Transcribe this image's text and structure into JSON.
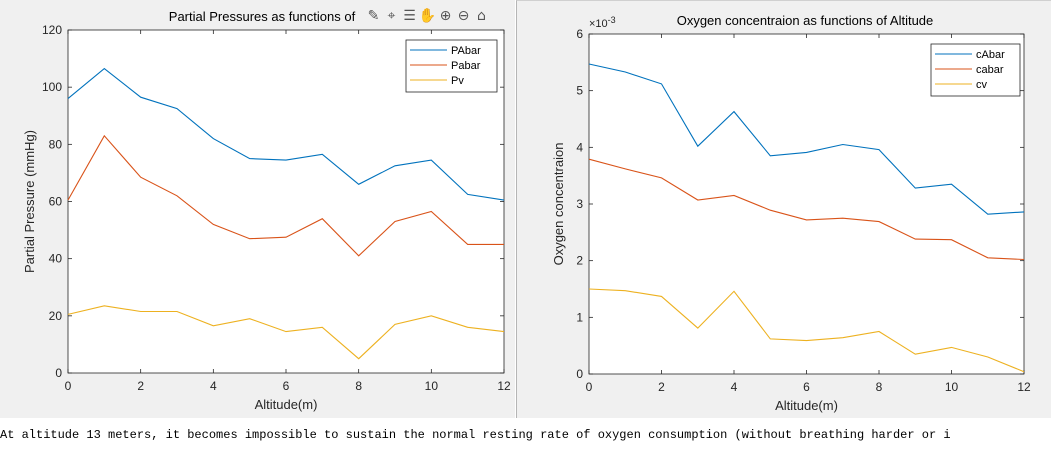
{
  "charts": [
    {
      "type": "line",
      "title": "Partial Pressures as functions of Altitude",
      "title_visible": "Partial Pressures as functions of",
      "xlabel": "Altitude(m)",
      "ylabel": "Partial Pressure (mmHg)",
      "xlim": [
        0,
        12
      ],
      "ylim": [
        0,
        120
      ],
      "xticks": [
        "0",
        "2",
        "4",
        "6",
        "8",
        "10",
        "12"
      ],
      "yticks": [
        "0",
        "20",
        "40",
        "60",
        "80",
        "100",
        "120"
      ],
      "legend_position": "top-right",
      "series": [
        {
          "name": "PAbar",
          "color": "#0072bd",
          "x": [
            0,
            1,
            2,
            3,
            4,
            5,
            6,
            7,
            8,
            9,
            10,
            11,
            12
          ],
          "values": [
            96,
            106.5,
            96.5,
            92.5,
            82,
            75,
            74.5,
            76.5,
            66,
            72.5,
            74.5,
            62.5,
            60.5
          ]
        },
        {
          "name": "Pabar",
          "color": "#d95319",
          "x": [
            0,
            1,
            2,
            3,
            4,
            5,
            6,
            7,
            8,
            9,
            10,
            11,
            12
          ],
          "values": [
            60.5,
            83,
            68.5,
            62,
            52,
            47,
            47.5,
            54,
            41,
            53,
            56.5,
            45,
            45
          ]
        },
        {
          "name": "Pv",
          "color": "#edb120",
          "x": [
            0,
            1,
            2,
            3,
            4,
            5,
            6,
            7,
            8,
            9,
            10,
            11,
            12
          ],
          "values": [
            20.5,
            23.5,
            21.5,
            21.5,
            16.5,
            19,
            14.5,
            16,
            5,
            17,
            20,
            16,
            14.5
          ]
        }
      ]
    },
    {
      "type": "line",
      "title": "Oxygen concentraion as functions of Altitude",
      "xlabel": "Altitude(m)",
      "ylabel": "Oxygen concentraion",
      "exponent": "×10",
      "exponent_power": "-3",
      "xlim": [
        0,
        12
      ],
      "ylim": [
        0,
        6
      ],
      "xticks": [
        "0",
        "2",
        "4",
        "6",
        "8",
        "10",
        "12"
      ],
      "yticks": [
        "0",
        "1",
        "2",
        "3",
        "4",
        "5",
        "6"
      ],
      "legend_position": "top-right",
      "series": [
        {
          "name": "cAbar",
          "color": "#0072bd",
          "x": [
            0,
            1,
            2,
            3,
            4,
            5,
            6,
            7,
            8,
            9,
            10,
            11,
            12
          ],
          "values": [
            5.47,
            5.33,
            5.12,
            4.02,
            4.63,
            3.85,
            3.91,
            4.05,
            3.96,
            3.28,
            3.35,
            2.82,
            2.86
          ]
        },
        {
          "name": "cabar",
          "color": "#d95319",
          "x": [
            0,
            1,
            2,
            3,
            4,
            5,
            6,
            7,
            8,
            9,
            10,
            11,
            12
          ],
          "values": [
            3.79,
            3.62,
            3.46,
            3.07,
            3.15,
            2.89,
            2.72,
            2.75,
            2.69,
            2.38,
            2.37,
            2.05,
            2.02
          ]
        },
        {
          "name": "cv",
          "color": "#edb120",
          "x": [
            0,
            1,
            2,
            3,
            4,
            5,
            6,
            7,
            8,
            9,
            10,
            11,
            12
          ],
          "values": [
            1.5,
            1.47,
            1.37,
            0.81,
            1.46,
            0.62,
            0.59,
            0.64,
            0.75,
            0.35,
            0.47,
            0.3,
            0.04
          ]
        }
      ]
    }
  ],
  "toolbar": {
    "icons": [
      "brush-icon",
      "data-cursor-icon",
      "insert-legend-icon",
      "pan-hand-icon",
      "zoom-in-icon",
      "zoom-out-icon",
      "home-icon"
    ]
  },
  "console": {
    "text": "At altitude 13 meters, it becomes impossible to sustain the normal resting rate of oxygen consumption (without breathing harder or i"
  }
}
